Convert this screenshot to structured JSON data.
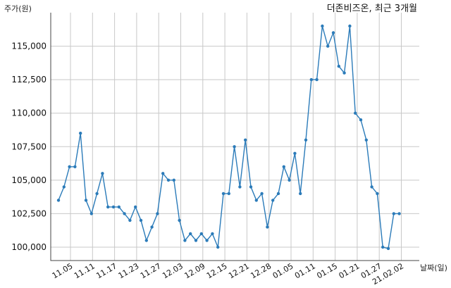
{
  "chart_data": {
    "type": "line",
    "title": "더존비즈온, 최근 3개월",
    "ylabel": "주가(원)",
    "xlabel": "날짜(일)",
    "ylim": [
      99000,
      117500
    ],
    "yticks": [
      100000,
      102500,
      105000,
      107500,
      110000,
      112500,
      115000
    ],
    "ytick_labels": [
      "100,000",
      "102,500",
      "105,000",
      "107,500",
      "110,000",
      "112,500",
      "115,000"
    ],
    "xtick_labels": [
      "11.05",
      "11.11",
      "11.17",
      "11.23",
      "11.27",
      "12.03",
      "12.09",
      "12.15",
      "12.21",
      "12.28",
      "01.05",
      "01.11",
      "01.15",
      "01.21",
      "01.27",
      "21.02.02"
    ],
    "grid": true,
    "series": [
      {
        "color": "#2b7bb9",
        "values": [
          103500,
          104500,
          106000,
          106000,
          108500,
          103500,
          102500,
          104000,
          105500,
          103000,
          103000,
          103000,
          102500,
          102000,
          103000,
          102000,
          100500,
          101500,
          102500,
          105500,
          105000,
          105000,
          102000,
          100500,
          101000,
          100500,
          101000,
          100500,
          101000,
          100000,
          104000,
          104000,
          107500,
          104500,
          108000,
          104500,
          103500,
          104000,
          101500,
          103500,
          104000,
          106000,
          105000,
          107000,
          104000,
          108000,
          112500,
          112500,
          116500,
          115000,
          116000,
          113500,
          113000,
          116500,
          110000,
          109500,
          108000,
          104500,
          104000,
          100000,
          99900,
          102500,
          102500
        ]
      }
    ]
  }
}
